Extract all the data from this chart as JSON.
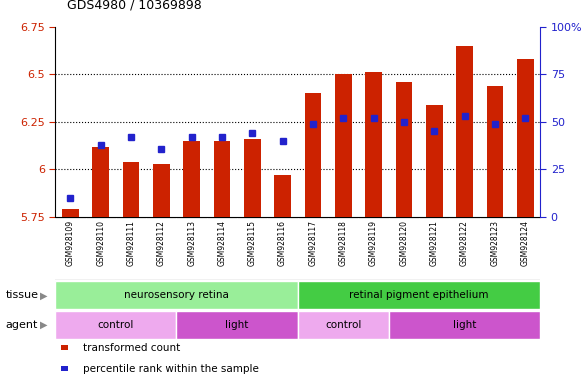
{
  "title": "GDS4980 / 10369898",
  "samples": [
    "GSM928109",
    "GSM928110",
    "GSM928111",
    "GSM928112",
    "GSM928113",
    "GSM928114",
    "GSM928115",
    "GSM928116",
    "GSM928117",
    "GSM928118",
    "GSM928119",
    "GSM928120",
    "GSM928121",
    "GSM928122",
    "GSM928123",
    "GSM928124"
  ],
  "transformed_count": [
    5.79,
    6.12,
    6.04,
    6.03,
    6.15,
    6.15,
    6.16,
    5.97,
    6.4,
    6.5,
    6.51,
    6.46,
    6.34,
    6.65,
    6.44,
    6.58
  ],
  "percentile_rank": [
    10,
    38,
    42,
    36,
    42,
    42,
    44,
    40,
    49,
    52,
    52,
    50,
    45,
    53,
    49,
    52
  ],
  "ylim_left": [
    5.75,
    6.75
  ],
  "ylim_right": [
    0,
    100
  ],
  "yticks_left": [
    5.75,
    6.0,
    6.25,
    6.5,
    6.75
  ],
  "yticks_right": [
    0,
    25,
    50,
    75,
    100
  ],
  "ytick_labels_left": [
    "5.75",
    "6",
    "6.25",
    "6.5",
    "6.75"
  ],
  "ytick_labels_right": [
    "0",
    "25",
    "50",
    "75",
    "100%"
  ],
  "bar_color": "#cc2200",
  "dot_color": "#2222cc",
  "tissue_groups": [
    {
      "label": "neurosensory retina",
      "start": 0,
      "end": 8,
      "color": "#99ee99"
    },
    {
      "label": "retinal pigment epithelium",
      "start": 8,
      "end": 16,
      "color": "#44cc44"
    }
  ],
  "agent_groups": [
    {
      "label": "control",
      "start": 0,
      "end": 4,
      "color": "#eeaaee"
    },
    {
      "label": "light",
      "start": 4,
      "end": 8,
      "color": "#cc55cc"
    },
    {
      "label": "control",
      "start": 8,
      "end": 11,
      "color": "#eeaaee"
    },
    {
      "label": "light",
      "start": 11,
      "end": 16,
      "color": "#cc55cc"
    }
  ],
  "legend_items": [
    {
      "label": "transformed count",
      "color": "#cc2200"
    },
    {
      "label": "percentile rank within the sample",
      "color": "#2222cc"
    }
  ],
  "tissue_label": "tissue",
  "agent_label": "agent",
  "label_bg": "#cccccc",
  "grid_lines": [
    6.0,
    6.25,
    6.5
  ]
}
